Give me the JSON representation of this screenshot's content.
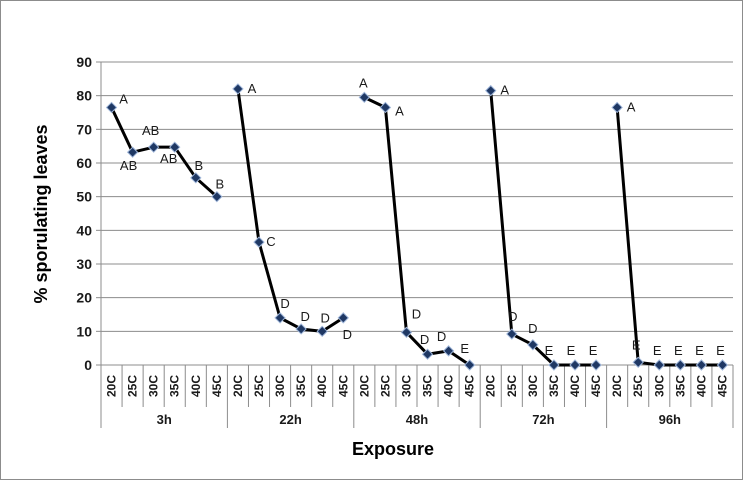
{
  "chart_data": {
    "type": "line",
    "xlabel": "Exposure",
    "ylabel": "% sporulating  leaves",
    "ylim": [
      0,
      90
    ],
    "yticks": [
      0,
      10,
      20,
      30,
      40,
      50,
      60,
      70,
      80,
      90
    ],
    "gridlines": true,
    "legend": "none",
    "groups": [
      {
        "name": "3h",
        "categories": [
          "20C",
          "25C",
          "30C",
          "35C",
          "40C",
          "45C"
        ],
        "values": [
          76.5,
          63.2,
          64.7,
          64.7,
          55.6,
          50.0
        ],
        "letters": [
          "A",
          "AB",
          "AB",
          "AB",
          "B",
          "B"
        ]
      },
      {
        "name": "22h",
        "categories": [
          "20C",
          "25C",
          "30C",
          "35C",
          "40C",
          "45C"
        ],
        "values": [
          82.0,
          36.5,
          14.0,
          10.7,
          10.0,
          14.0
        ],
        "letters": [
          "A",
          "C",
          "D",
          "D",
          "D",
          "D"
        ]
      },
      {
        "name": "48h",
        "categories": [
          "20C",
          "25C",
          "30C",
          "35C",
          "40C",
          "45C"
        ],
        "values": [
          79.5,
          76.5,
          9.7,
          3.2,
          4.2,
          0.0
        ],
        "letters": [
          "A",
          "A",
          "D",
          "D",
          "D",
          "E"
        ]
      },
      {
        "name": "72h",
        "categories": [
          "20C",
          "25C",
          "30C",
          "35C",
          "40C",
          "45C"
        ],
        "values": [
          81.5,
          9.2,
          6.0,
          0.0,
          0.0,
          0.0
        ],
        "letters": [
          "A",
          "D",
          "D",
          "E",
          "E",
          "E"
        ]
      },
      {
        "name": "96h",
        "categories": [
          "20C",
          "25C",
          "30C",
          "35C",
          "40C",
          "45C"
        ],
        "values": [
          76.5,
          0.8,
          0.0,
          0.0,
          0.0,
          0.0
        ],
        "letters": [
          "A",
          "E",
          "E",
          "E",
          "E",
          "E"
        ]
      }
    ]
  },
  "colors": {
    "line": "#000000",
    "marker_fill": "#1f3864",
    "marker_stroke": "#9db4d8",
    "grid": "#8c8c8c",
    "axis": "#8c8c8c"
  }
}
